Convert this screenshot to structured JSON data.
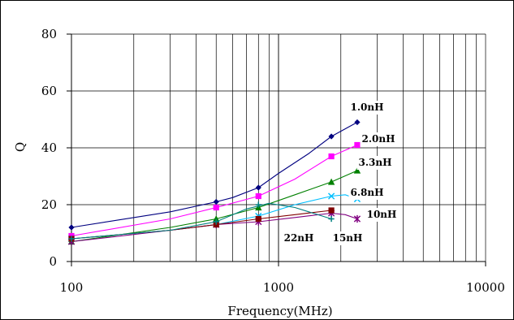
{
  "chart_data": {
    "type": "line",
    "xlabel": "Frequency(MHz)",
    "ylabel": "Q",
    "x_scale": "log",
    "xlim": [
      100,
      10000
    ],
    "ylim": [
      0,
      80
    ],
    "x_ticks": [
      "100",
      "1000",
      "10000"
    ],
    "y_ticks": [
      "0",
      "20",
      "40",
      "60",
      "80"
    ],
    "grid": true,
    "series": [
      {
        "name": "1.0nH",
        "color": "#000080",
        "marker": "diamond",
        "points": [
          [
            100,
            12
          ],
          [
            500,
            21
          ],
          [
            800,
            26
          ],
          [
            1800,
            44
          ],
          [
            2400,
            49
          ]
        ],
        "curve": [
          [
            100,
            12
          ],
          [
            300,
            17.5
          ],
          [
            500,
            21
          ],
          [
            600,
            22.5
          ],
          [
            800,
            26
          ],
          [
            1000,
            31
          ],
          [
            1400,
            38
          ],
          [
            1800,
            44
          ],
          [
            2400,
            49
          ]
        ]
      },
      {
        "name": "2.0nH",
        "color": "#ff00ff",
        "marker": "square",
        "points": [
          [
            100,
            9
          ],
          [
            500,
            19
          ],
          [
            800,
            23
          ],
          [
            1800,
            37
          ],
          [
            2400,
            41
          ]
        ],
        "curve": [
          [
            100,
            9
          ],
          [
            300,
            15
          ],
          [
            500,
            19
          ],
          [
            800,
            23
          ],
          [
            1200,
            29
          ],
          [
            1800,
            37
          ],
          [
            2400,
            41
          ]
        ]
      },
      {
        "name": "3.3nH",
        "color": "#008000",
        "marker": "triangle",
        "points": [
          [
            100,
            7
          ],
          [
            500,
            15
          ],
          [
            800,
            19
          ],
          [
            1800,
            28
          ],
          [
            2400,
            32
          ]
        ],
        "curve": [
          [
            100,
            7
          ],
          [
            300,
            12
          ],
          [
            500,
            15
          ],
          [
            800,
            19
          ],
          [
            1200,
            23.5
          ],
          [
            1800,
            28
          ],
          [
            2400,
            32
          ]
        ]
      },
      {
        "name": "6.8nH",
        "color": "#00bfff",
        "marker": "x",
        "points": [
          [
            100,
            8
          ],
          [
            500,
            13
          ],
          [
            800,
            16
          ],
          [
            1800,
            23
          ],
          [
            2400,
            22
          ]
        ],
        "curve": [
          [
            100,
            8
          ],
          [
            300,
            11
          ],
          [
            500,
            13
          ],
          [
            800,
            16
          ],
          [
            1200,
            20
          ],
          [
            1800,
            23
          ],
          [
            2100,
            23.5
          ],
          [
            2400,
            22
          ]
        ]
      },
      {
        "name": "10nH",
        "color": "#800080",
        "marker": "star",
        "points": [
          [
            100,
            7
          ],
          [
            500,
            13
          ],
          [
            800,
            14
          ],
          [
            1800,
            17
          ],
          [
            2400,
            15
          ]
        ],
        "curve": [
          [
            100,
            7
          ],
          [
            300,
            11
          ],
          [
            500,
            13
          ],
          [
            800,
            14
          ],
          [
            1200,
            15.5
          ],
          [
            1800,
            17
          ],
          [
            2100,
            16.5
          ],
          [
            2400,
            15
          ]
        ]
      },
      {
        "name": "15nH",
        "color": "#800000",
        "marker": "filled-square",
        "points": [
          [
            100,
            8
          ],
          [
            500,
            13
          ],
          [
            800,
            15
          ],
          [
            1800,
            18
          ]
        ],
        "curve": [
          [
            100,
            8
          ],
          [
            300,
            11
          ],
          [
            500,
            13
          ],
          [
            800,
            15
          ],
          [
            1200,
            16.5
          ],
          [
            1800,
            18
          ]
        ]
      },
      {
        "name": "22nH",
        "color": "#008080",
        "marker": "plus",
        "points": [
          [
            100,
            8
          ],
          [
            500,
            14
          ],
          [
            800,
            20
          ],
          [
            1800,
            15
          ]
        ],
        "curve": [
          [
            100,
            8
          ],
          [
            300,
            11
          ],
          [
            500,
            14
          ],
          [
            700,
            18.5
          ],
          [
            900,
            20.5
          ],
          [
            1200,
            19
          ],
          [
            1800,
            15
          ]
        ]
      }
    ]
  }
}
